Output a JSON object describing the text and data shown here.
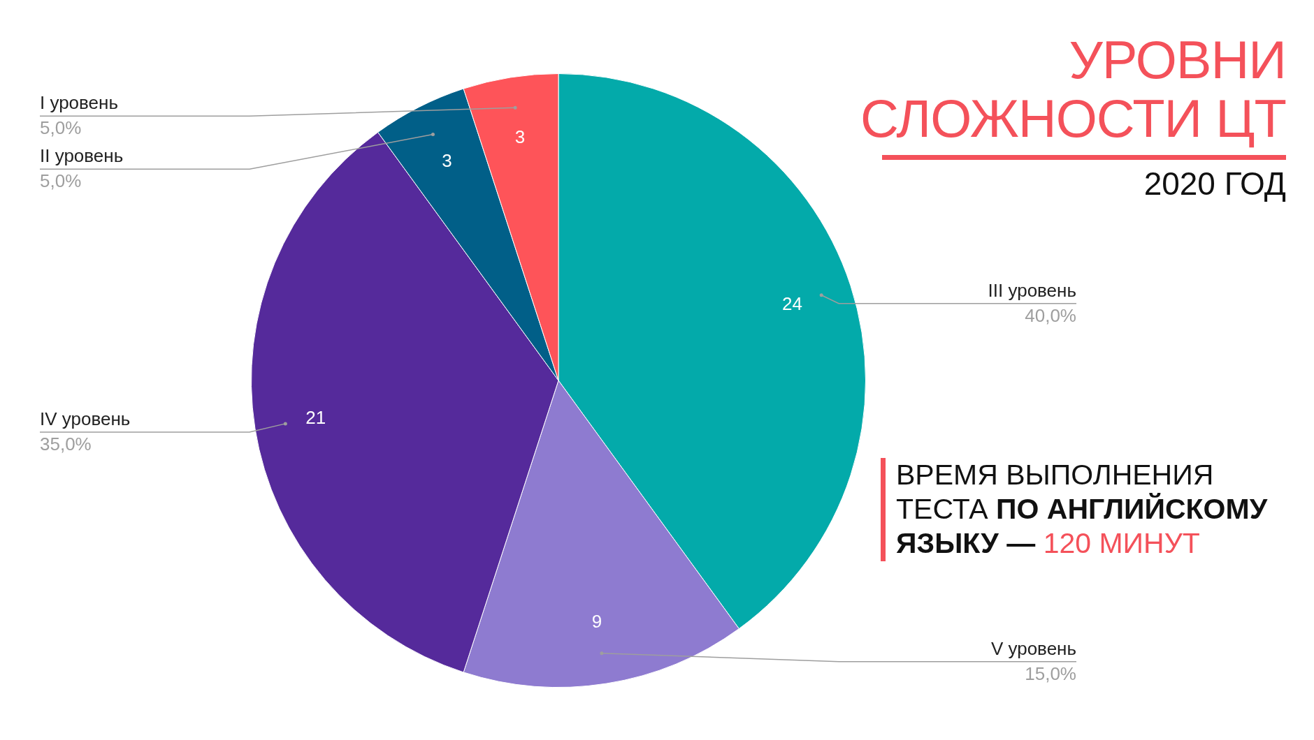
{
  "chart_data": {
    "type": "pie",
    "title": "УРОВНИ СЛОЖНОСТИ ЦТ",
    "subtitle": "2020 ГОД",
    "categories": [
      "III уровень",
      "V уровень",
      "IV уровень",
      "II уровень",
      "I уровень"
    ],
    "values": [
      24,
      9,
      21,
      3,
      3
    ],
    "colors": [
      "#03aaaa",
      "#8e7bd0",
      "#552a9b",
      "#015f88",
      "#fe5459"
    ],
    "data_labels": true,
    "legend": false,
    "annotations": [
      "40,0%",
      "15,0%",
      "35,0%",
      "5,0%",
      "5,0%",
      "ВРЕМЯ ВЫПОЛНЕНИЯ ТЕСТА ",
      "ПО АНГЛИЙСКОМУ ЯЗЫКУ — ",
      "120 МИНУТ"
    ]
  }
}
